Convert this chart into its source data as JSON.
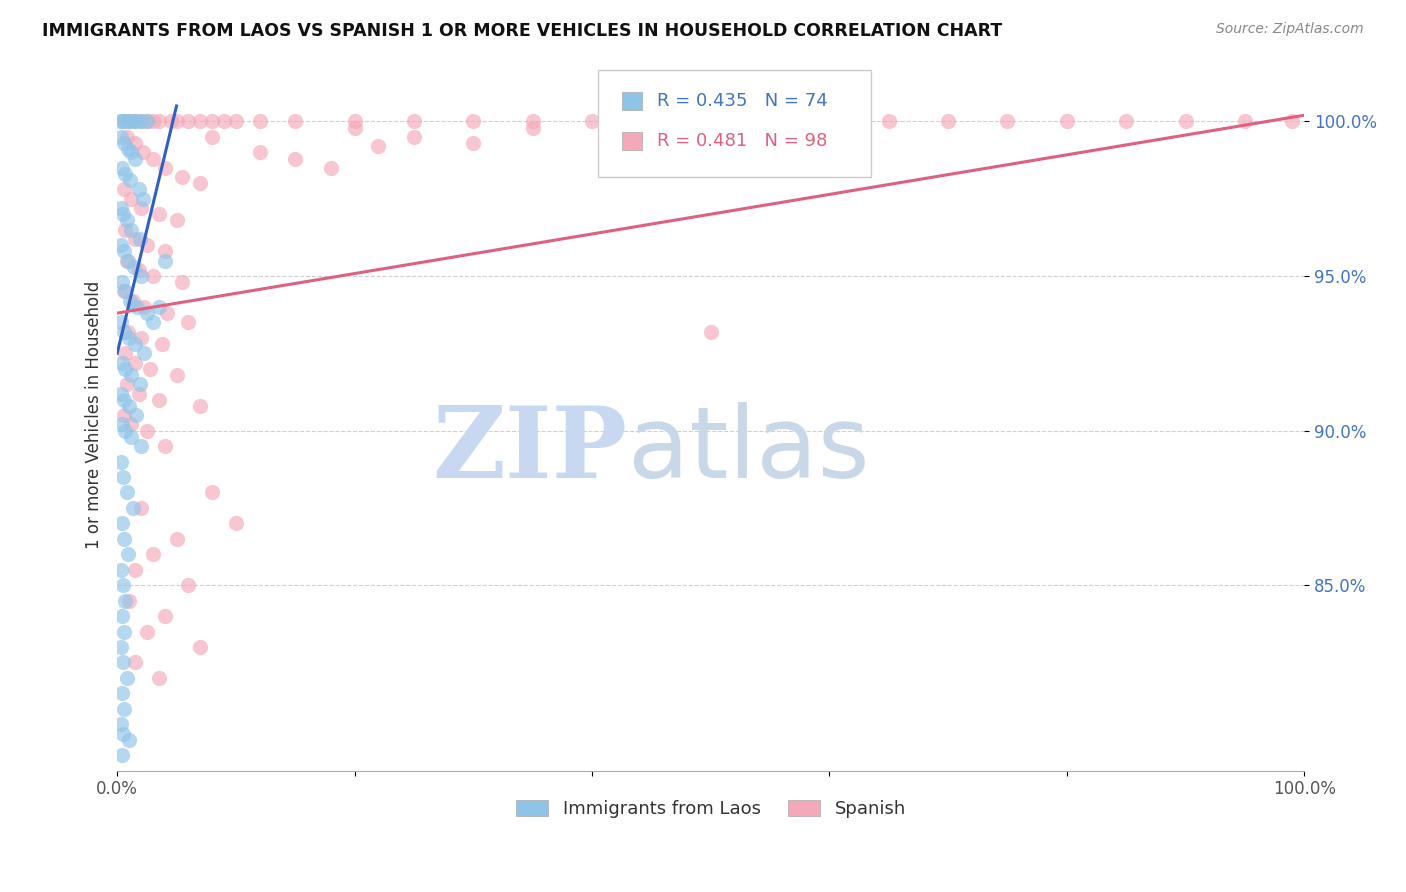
{
  "title": "IMMIGRANTS FROM LAOS VS SPANISH 1 OR MORE VEHICLES IN HOUSEHOLD CORRELATION CHART",
  "source": "Source: ZipAtlas.com",
  "ylabel": "1 or more Vehicles in Household",
  "ytick_values": [
    85.0,
    90.0,
    95.0,
    100.0
  ],
  "xlim": [
    0.0,
    100.0
  ],
  "ylim": [
    79.0,
    102.0
  ],
  "legend_label_blue": "Immigrants from Laos",
  "legend_label_pink": "Spanish",
  "legend_R_blue": "R = 0.435",
  "legend_N_blue": "N = 74",
  "legend_R_pink": "R = 0.481",
  "legend_N_pink": "N = 98",
  "blue_color": "#8ec4e8",
  "pink_color": "#f4a8b8",
  "blue_line_color": "#3060c0",
  "pink_line_color": "#e06080",
  "watermark_zip": "ZIP",
  "watermark_atlas": "atlas",
  "watermark_color_zip": "#c8d8f0",
  "watermark_color_atlas": "#c8d8e8",
  "blue_scatter": [
    [
      0.2,
      100.0
    ],
    [
      0.5,
      100.0
    ],
    [
      0.8,
      100.0
    ],
    [
      1.0,
      100.0
    ],
    [
      1.3,
      100.0
    ],
    [
      1.6,
      100.0
    ],
    [
      2.0,
      100.0
    ],
    [
      2.5,
      100.0
    ],
    [
      0.3,
      99.5
    ],
    [
      0.6,
      99.3
    ],
    [
      0.9,
      99.1
    ],
    [
      1.2,
      99.0
    ],
    [
      1.5,
      98.8
    ],
    [
      0.4,
      98.5
    ],
    [
      0.7,
      98.3
    ],
    [
      1.1,
      98.1
    ],
    [
      1.8,
      97.8
    ],
    [
      2.2,
      97.5
    ],
    [
      0.3,
      97.2
    ],
    [
      0.5,
      97.0
    ],
    [
      0.8,
      96.8
    ],
    [
      1.2,
      96.5
    ],
    [
      1.9,
      96.2
    ],
    [
      0.3,
      96.0
    ],
    [
      0.6,
      95.8
    ],
    [
      0.9,
      95.5
    ],
    [
      1.4,
      95.3
    ],
    [
      2.0,
      95.0
    ],
    [
      0.4,
      94.8
    ],
    [
      0.7,
      94.5
    ],
    [
      1.1,
      94.2
    ],
    [
      1.7,
      94.0
    ],
    [
      2.5,
      93.8
    ],
    [
      0.3,
      93.5
    ],
    [
      0.6,
      93.2
    ],
    [
      1.0,
      93.0
    ],
    [
      1.5,
      92.8
    ],
    [
      2.3,
      92.5
    ],
    [
      0.4,
      92.2
    ],
    [
      0.7,
      92.0
    ],
    [
      1.2,
      91.8
    ],
    [
      1.9,
      91.5
    ],
    [
      0.3,
      91.2
    ],
    [
      0.6,
      91.0
    ],
    [
      1.0,
      90.8
    ],
    [
      1.6,
      90.5
    ],
    [
      0.4,
      90.2
    ],
    [
      0.7,
      90.0
    ],
    [
      1.2,
      89.8
    ],
    [
      2.0,
      89.5
    ],
    [
      0.3,
      89.0
    ],
    [
      0.5,
      88.5
    ],
    [
      0.8,
      88.0
    ],
    [
      1.3,
      87.5
    ],
    [
      0.4,
      87.0
    ],
    [
      0.6,
      86.5
    ],
    [
      0.9,
      86.0
    ],
    [
      0.3,
      85.5
    ],
    [
      0.5,
      85.0
    ],
    [
      0.7,
      84.5
    ],
    [
      0.4,
      84.0
    ],
    [
      0.6,
      83.5
    ],
    [
      0.3,
      83.0
    ],
    [
      0.5,
      82.5
    ],
    [
      0.8,
      82.0
    ],
    [
      0.4,
      81.5
    ],
    [
      0.6,
      81.0
    ],
    [
      0.3,
      80.5
    ],
    [
      0.5,
      80.2
    ],
    [
      1.0,
      80.0
    ],
    [
      0.4,
      79.5
    ],
    [
      3.0,
      93.5
    ],
    [
      3.5,
      94.0
    ],
    [
      4.0,
      95.5
    ]
  ],
  "pink_scatter": [
    [
      0.5,
      100.0
    ],
    [
      1.0,
      100.0
    ],
    [
      1.5,
      100.0
    ],
    [
      2.0,
      100.0
    ],
    [
      2.5,
      100.0
    ],
    [
      3.0,
      100.0
    ],
    [
      3.5,
      100.0
    ],
    [
      4.5,
      100.0
    ],
    [
      5.0,
      100.0
    ],
    [
      6.0,
      100.0
    ],
    [
      7.0,
      100.0
    ],
    [
      8.0,
      100.0
    ],
    [
      9.0,
      100.0
    ],
    [
      10.0,
      100.0
    ],
    [
      12.0,
      100.0
    ],
    [
      15.0,
      100.0
    ],
    [
      20.0,
      100.0
    ],
    [
      25.0,
      100.0
    ],
    [
      30.0,
      100.0
    ],
    [
      35.0,
      100.0
    ],
    [
      40.0,
      100.0
    ],
    [
      45.0,
      100.0
    ],
    [
      50.0,
      100.0
    ],
    [
      55.0,
      100.0
    ],
    [
      60.0,
      100.0
    ],
    [
      65.0,
      100.0
    ],
    [
      70.0,
      100.0
    ],
    [
      75.0,
      100.0
    ],
    [
      80.0,
      100.0
    ],
    [
      85.0,
      100.0
    ],
    [
      90.0,
      100.0
    ],
    [
      95.0,
      100.0
    ],
    [
      99.0,
      100.0
    ],
    [
      0.8,
      99.5
    ],
    [
      1.5,
      99.3
    ],
    [
      2.2,
      99.0
    ],
    [
      3.0,
      98.8
    ],
    [
      4.0,
      98.5
    ],
    [
      5.5,
      98.2
    ],
    [
      7.0,
      98.0
    ],
    [
      0.6,
      97.8
    ],
    [
      1.2,
      97.5
    ],
    [
      2.0,
      97.2
    ],
    [
      3.5,
      97.0
    ],
    [
      5.0,
      96.8
    ],
    [
      0.7,
      96.5
    ],
    [
      1.5,
      96.2
    ],
    [
      2.5,
      96.0
    ],
    [
      4.0,
      95.8
    ],
    [
      0.8,
      95.5
    ],
    [
      1.8,
      95.2
    ],
    [
      3.0,
      95.0
    ],
    [
      5.5,
      94.8
    ],
    [
      0.6,
      94.5
    ],
    [
      1.3,
      94.2
    ],
    [
      2.3,
      94.0
    ],
    [
      4.2,
      93.8
    ],
    [
      6.0,
      93.5
    ],
    [
      0.9,
      93.2
    ],
    [
      2.0,
      93.0
    ],
    [
      3.8,
      92.8
    ],
    [
      0.7,
      92.5
    ],
    [
      1.5,
      92.2
    ],
    [
      2.8,
      92.0
    ],
    [
      5.0,
      91.8
    ],
    [
      0.8,
      91.5
    ],
    [
      1.8,
      91.2
    ],
    [
      3.5,
      91.0
    ],
    [
      7.0,
      90.8
    ],
    [
      0.6,
      90.5
    ],
    [
      1.2,
      90.2
    ],
    [
      2.5,
      90.0
    ],
    [
      50.0,
      93.2
    ],
    [
      4.0,
      89.5
    ],
    [
      8.0,
      88.0
    ],
    [
      2.0,
      87.5
    ],
    [
      5.0,
      86.5
    ],
    [
      10.0,
      87.0
    ],
    [
      3.0,
      86.0
    ],
    [
      1.5,
      85.5
    ],
    [
      6.0,
      85.0
    ],
    [
      1.0,
      84.5
    ],
    [
      4.0,
      84.0
    ],
    [
      2.5,
      83.5
    ],
    [
      7.0,
      83.0
    ],
    [
      1.5,
      82.5
    ],
    [
      3.5,
      82.0
    ],
    [
      30.0,
      99.3
    ],
    [
      15.0,
      98.8
    ],
    [
      8.0,
      99.5
    ],
    [
      20.0,
      99.8
    ],
    [
      12.0,
      99.0
    ],
    [
      25.0,
      99.5
    ],
    [
      18.0,
      98.5
    ],
    [
      22.0,
      99.2
    ],
    [
      35.0,
      99.8
    ],
    [
      42.0,
      99.5
    ]
  ],
  "blue_trendline": {
    "x_start": 0.0,
    "y_start": 92.5,
    "x_end": 5.0,
    "y_end": 100.5
  },
  "pink_trendline": {
    "x_start": 0.0,
    "y_start": 93.8,
    "x_end": 100.0,
    "y_end": 100.2
  }
}
